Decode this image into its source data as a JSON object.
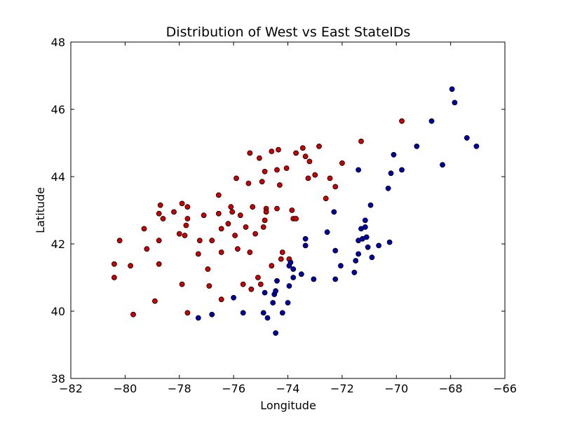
{
  "chart_data": {
    "type": "scatter",
    "title": "Distribution of West vs East StateIDs",
    "xlabel": "Longitude",
    "ylabel": "Latitude",
    "xlim": [
      -82,
      -66
    ],
    "ylim": [
      38,
      48
    ],
    "xticks": [
      -82,
      -80,
      -78,
      -76,
      -74,
      -72,
      -70,
      -68,
      -66
    ],
    "xtick_labels": [
      "−82",
      "−80",
      "−78",
      "−76",
      "−74",
      "−72",
      "−70",
      "−68",
      "−66"
    ],
    "yticks": [
      38,
      40,
      42,
      44,
      46,
      48
    ],
    "ytick_labels": [
      "38",
      "40",
      "42",
      "44",
      "46",
      "48"
    ],
    "grid": false,
    "legend": "none",
    "series": [
      {
        "color": "#cc0000",
        "points": [
          [
            -80.4,
            41.4
          ],
          [
            -80.4,
            41.0
          ],
          [
            -80.2,
            42.1
          ],
          [
            -79.8,
            41.35
          ],
          [
            -79.7,
            39.9
          ],
          [
            -79.3,
            42.45
          ],
          [
            -79.2,
            41.85
          ],
          [
            -78.9,
            40.3
          ],
          [
            -78.75,
            42.9
          ],
          [
            -78.75,
            42.1
          ],
          [
            -78.75,
            41.4
          ],
          [
            -78.7,
            43.15
          ],
          [
            -78.6,
            42.75
          ],
          [
            -78.2,
            42.95
          ],
          [
            -78.0,
            42.3
          ],
          [
            -77.9,
            43.2
          ],
          [
            -77.9,
            40.8
          ],
          [
            -77.8,
            42.25
          ],
          [
            -77.75,
            42.55
          ],
          [
            -77.7,
            43.1
          ],
          [
            -77.7,
            42.75
          ],
          [
            -77.7,
            39.95
          ],
          [
            -77.3,
            41.7
          ],
          [
            -77.25,
            42.1
          ],
          [
            -77.1,
            42.85
          ],
          [
            -76.95,
            41.25
          ],
          [
            -76.9,
            40.75
          ],
          [
            -76.8,
            42.1
          ],
          [
            -76.55,
            43.45
          ],
          [
            -76.55,
            42.9
          ],
          [
            -76.45,
            42.45
          ],
          [
            -76.45,
            41.75
          ],
          [
            -76.45,
            40.35
          ],
          [
            -76.2,
            42.6
          ],
          [
            -76.1,
            43.1
          ],
          [
            -76.05,
            42.95
          ],
          [
            -75.95,
            42.25
          ],
          [
            -75.9,
            43.95
          ],
          [
            -75.85,
            41.85
          ],
          [
            -75.75,
            42.85
          ],
          [
            -75.65,
            40.8
          ],
          [
            -75.55,
            42.5
          ],
          [
            -75.45,
            43.8
          ],
          [
            -75.4,
            44.7
          ],
          [
            -75.4,
            41.75
          ],
          [
            -75.35,
            40.65
          ],
          [
            -75.3,
            43.1
          ],
          [
            -75.2,
            42.3
          ],
          [
            -75.1,
            41.0
          ],
          [
            -75.05,
            44.55
          ],
          [
            -75.0,
            40.8
          ],
          [
            -74.95,
            43.85
          ],
          [
            -74.9,
            42.5
          ],
          [
            -74.85,
            44.15
          ],
          [
            -74.85,
            42.7
          ],
          [
            -74.8,
            43.05
          ],
          [
            -74.8,
            42.95
          ],
          [
            -74.6,
            44.75
          ],
          [
            -74.6,
            41.35
          ],
          [
            -74.4,
            44.2
          ],
          [
            -74.4,
            43.05
          ],
          [
            -74.35,
            44.8
          ],
          [
            -74.3,
            43.75
          ],
          [
            -74.25,
            41.55
          ],
          [
            -74.2,
            41.75
          ],
          [
            -74.05,
            44.25
          ],
          [
            -73.95,
            41.55
          ],
          [
            -73.85,
            43.0
          ],
          [
            -73.8,
            42.75
          ],
          [
            -73.7,
            44.7
          ],
          [
            -73.7,
            42.75
          ],
          [
            -73.45,
            44.85
          ],
          [
            -73.35,
            44.6
          ],
          [
            -73.25,
            43.95
          ],
          [
            -73.2,
            44.45
          ],
          [
            -73.0,
            44.05
          ],
          [
            -72.85,
            44.9
          ],
          [
            -72.6,
            43.35
          ],
          [
            -72.45,
            43.95
          ],
          [
            -72.25,
            43.7
          ],
          [
            -72.0,
            44.4
          ],
          [
            -71.3,
            45.05
          ],
          [
            -69.8,
            45.65
          ]
        ]
      },
      {
        "color": "#0000aa",
        "points": [
          [
            -77.3,
            39.8
          ],
          [
            -76.8,
            39.9
          ],
          [
            -76.0,
            40.4
          ],
          [
            -75.65,
            39.95
          ],
          [
            -74.9,
            39.95
          ],
          [
            -74.85,
            40.55
          ],
          [
            -74.75,
            39.8
          ],
          [
            -74.55,
            40.25
          ],
          [
            -74.5,
            40.5
          ],
          [
            -74.45,
            40.6
          ],
          [
            -74.45,
            39.35
          ],
          [
            -74.4,
            40.9
          ],
          [
            -74.2,
            39.95
          ],
          [
            -74.0,
            40.25
          ],
          [
            -73.95,
            40.75
          ],
          [
            -73.95,
            41.35
          ],
          [
            -73.9,
            41.45
          ],
          [
            -73.8,
            41.0
          ],
          [
            -73.8,
            41.25
          ],
          [
            -73.5,
            41.1
          ],
          [
            -73.35,
            42.15
          ],
          [
            -73.35,
            41.95
          ],
          [
            -73.05,
            40.95
          ],
          [
            -72.55,
            42.35
          ],
          [
            -72.3,
            42.95
          ],
          [
            -72.25,
            41.8
          ],
          [
            -72.25,
            40.95
          ],
          [
            -72.05,
            41.35
          ],
          [
            -71.55,
            41.15
          ],
          [
            -71.5,
            41.5
          ],
          [
            -71.4,
            41.7
          ],
          [
            -71.4,
            42.1
          ],
          [
            -71.3,
            42.45
          ],
          [
            -71.25,
            42.15
          ],
          [
            -71.15,
            42.5
          ],
          [
            -71.15,
            42.7
          ],
          [
            -71.1,
            42.2
          ],
          [
            -71.05,
            41.9
          ],
          [
            -70.95,
            43.15
          ],
          [
            -70.9,
            41.6
          ],
          [
            -70.65,
            41.95
          ],
          [
            -70.25,
            42.05
          ],
          [
            -70.3,
            43.65
          ],
          [
            -70.2,
            44.1
          ],
          [
            -70.1,
            44.65
          ],
          [
            -69.8,
            44.2
          ],
          [
            -69.25,
            44.9
          ],
          [
            -71.4,
            44.2
          ],
          [
            -68.7,
            45.65
          ],
          [
            -68.3,
            44.35
          ],
          [
            -67.95,
            46.6
          ],
          [
            -67.85,
            46.2
          ],
          [
            -67.4,
            45.15
          ],
          [
            -67.05,
            44.9
          ]
        ]
      }
    ]
  }
}
